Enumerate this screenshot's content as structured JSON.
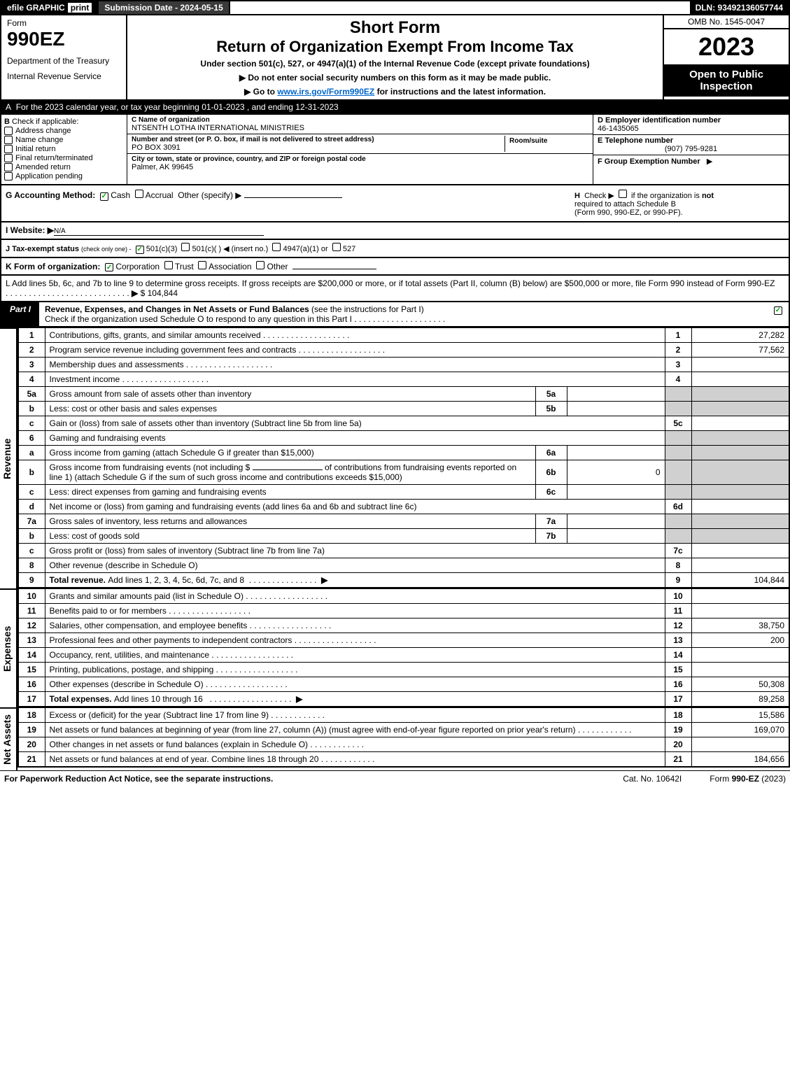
{
  "colors": {
    "black": "#000000",
    "white": "#ffffff",
    "darkgray": "#3a3a3a",
    "shade": "#d0d0d0",
    "link": "#0066cc",
    "check_green": "#00aa00"
  },
  "top_bar": {
    "efile": "efile",
    "graphic": "GRAPHIC",
    "print": "print",
    "submission_label": "Submission Date - 2024-05-15",
    "dln": "DLN: 93492136057744"
  },
  "header": {
    "form_word": "Form",
    "form_number": "990EZ",
    "department": "Department of the Treasury",
    "irs": "Internal Revenue Service",
    "short_form": "Short Form",
    "title": "Return of Organization Exempt From Income Tax",
    "subtitle": "Under section 501(c), 527, or 4947(a)(1) of the Internal Revenue Code (except private foundations)",
    "no_ssn": "▶ Do not enter social security numbers on this form as it may be made public.",
    "goto": "▶ Go to ",
    "goto_link": "www.irs.gov/Form990EZ",
    "goto_suffix": " for instructions and the latest information.",
    "omb": "OMB No. 1545-0047",
    "year": "2023",
    "open_to": "Open to Public Inspection"
  },
  "section_a": {
    "prefix": "A",
    "text": "For the 2023 calendar year, or tax year beginning 01-01-2023 , and ending 12-31-2023"
  },
  "section_b": {
    "label": "B",
    "heading": "Check if applicable:",
    "items": [
      {
        "label": "Address change",
        "checked": false
      },
      {
        "label": "Name change",
        "checked": false
      },
      {
        "label": "Initial return",
        "checked": false
      },
      {
        "label": "Final return/terminated",
        "checked": false
      },
      {
        "label": "Amended return",
        "checked": false
      },
      {
        "label": "Application pending",
        "checked": false
      }
    ]
  },
  "section_c": {
    "name_label": "C Name of organization",
    "name": "NTSENTH LOTHA INTERNATIONAL MINISTRIES",
    "street_label": "Number and street (or P. O. box, if mail is not delivered to street address)",
    "room_label": "Room/suite",
    "street": "PO BOX 3091",
    "city_label": "City or town, state or province, country, and ZIP or foreign postal code",
    "city": "Palmer, AK  99645"
  },
  "section_d": {
    "ein_label": "D Employer identification number",
    "ein": "46-1435065",
    "phone_label": "E Telephone number",
    "phone": "(907) 795-9281",
    "group_label": "F Group Exemption Number",
    "group_arrow": "▶"
  },
  "row_g": {
    "label": "G Accounting Method:",
    "cash": "Cash",
    "accrual": "Accrual",
    "other": "Other (specify) ▶",
    "cash_checked": true,
    "h_label": "H",
    "h_text1": "Check ▶",
    "h_text2": "if the organization is",
    "h_not": "not",
    "h_text3": "required to attach Schedule B",
    "h_text4": "(Form 990, 990-EZ, or 990-PF)."
  },
  "row_i": {
    "label": "I Website: ▶",
    "value": "N/A"
  },
  "row_j": {
    "label": "J Tax-exempt status",
    "small": "(check only one) -",
    "opt1": "501(c)(3)",
    "opt2": "501(c)(  ) ◀ (insert no.)",
    "opt3": "4947(a)(1) or",
    "opt4": "527",
    "opt1_checked": true
  },
  "row_k": {
    "label": "K Form of organization:",
    "opts": [
      {
        "label": "Corporation",
        "checked": true
      },
      {
        "label": "Trust",
        "checked": false
      },
      {
        "label": "Association",
        "checked": false
      },
      {
        "label": "Other",
        "checked": false
      }
    ]
  },
  "row_l": {
    "text": "L Add lines 5b, 6c, and 7b to line 9 to determine gross receipts. If gross receipts are $200,000 or more, or if total assets (Part II, column (B) below) are $500,000 or more, file Form 990 instead of Form 990-EZ",
    "arrow": "▶",
    "amount": "$ 104,844"
  },
  "part1": {
    "label": "Part I",
    "title": "Revenue, Expenses, and Changes in Net Assets or Fund Balances",
    "subtitle": "(see the instructions for Part I)",
    "check_text": "Check if the organization used Schedule O to respond to any question in this Part I",
    "check_checked": true
  },
  "revenue": {
    "side_label": "Revenue",
    "rows": [
      {
        "num": "1",
        "desc": "Contributions, gifts, grants, and similar amounts received",
        "ref": "1",
        "val": "27,282"
      },
      {
        "num": "2",
        "desc": "Program service revenue including government fees and contracts",
        "ref": "2",
        "val": "77,562"
      },
      {
        "num": "3",
        "desc": "Membership dues and assessments",
        "ref": "3",
        "val": ""
      },
      {
        "num": "4",
        "desc": "Investment income",
        "ref": "4",
        "val": ""
      }
    ],
    "row5a": {
      "num": "5a",
      "desc": "Gross amount from sale of assets other than inventory",
      "sub_ref": "5a",
      "sub_val": ""
    },
    "row5b": {
      "num": "b",
      "desc": "Less: cost or other basis and sales expenses",
      "sub_ref": "5b",
      "sub_val": ""
    },
    "row5c": {
      "num": "c",
      "desc": "Gain or (loss) from sale of assets other than inventory (Subtract line 5b from line 5a)",
      "ref": "5c",
      "val": ""
    },
    "row6": {
      "num": "6",
      "desc": "Gaming and fundraising events"
    },
    "row6a": {
      "num": "a",
      "desc": "Gross income from gaming (attach Schedule G if greater than $15,000)",
      "sub_ref": "6a",
      "sub_val": ""
    },
    "row6b": {
      "num": "b",
      "desc_pre": "Gross income from fundraising events (not including $",
      "desc_mid": "of contributions from fundraising events reported on line 1) (attach Schedule G if the sum of such gross income and contributions exceeds $15,000)",
      "sub_ref": "6b",
      "sub_2traw": "",
      "sub_val": "0"
    },
    "row6c": {
      "num": "c",
      "desc": "Less: direct expenses from gaming and fundraising events",
      "sub_ref": "6c",
      "sub_val": ""
    },
    "row6d": {
      "num": "d",
      "desc": "Net income or (loss) from gaming and fundraising events (add lines 6a and 6b and subtract line 6c)",
      "ref": "6d",
      "val": ""
    },
    "row7a": {
      "num": "7a",
      "desc": "Gross sales of inventory, less returns and allowances",
      "sub_ref": "7a",
      "sub_val": ""
    },
    "row7b": {
      "num": "b",
      "desc": "Less: cost of goods sold",
      "sub_ref": "7b",
      "sub_val": ""
    },
    "row7c": {
      "num": "c",
      "desc": "Gross profit or (loss) from sales of inventory (Subtract line 7b from line 7a)",
      "ref": "7c",
      "val": ""
    },
    "row8": {
      "num": "8",
      "desc": "Other revenue (describe in Schedule O)",
      "ref": "8",
      "val": ""
    },
    "row9": {
      "num": "9",
      "desc": "Total revenue. ",
      "desc2": "Add lines 1, 2, 3, 4, 5c, 6d, 7c, and 8",
      "arrow": "▶",
      "ref": "9",
      "val": "104,844"
    }
  },
  "expenses": {
    "side_label": "Expenses",
    "rows": [
      {
        "num": "10",
        "desc": "Grants and similar amounts paid (list in Schedule O)",
        "ref": "10",
        "val": ""
      },
      {
        "num": "11",
        "desc": "Benefits paid to or for members",
        "ref": "11",
        "val": ""
      },
      {
        "num": "12",
        "desc": "Salaries, other compensation, and employee benefits",
        "ref": "12",
        "val": "38,750"
      },
      {
        "num": "13",
        "desc": "Professional fees and other payments to independent contractors",
        "ref": "13",
        "val": "200"
      },
      {
        "num": "14",
        "desc": "Occupancy, rent, utilities, and maintenance",
        "ref": "14",
        "val": ""
      },
      {
        "num": "15",
        "desc": "Printing, publications, postage, and shipping",
        "ref": "15",
        "val": ""
      },
      {
        "num": "16",
        "desc": "Other expenses (describe in Schedule O)",
        "ref": "16",
        "val": "50,308"
      }
    ],
    "row17": {
      "num": "17",
      "desc": "Total expenses. ",
      "desc2": "Add lines 10 through 16",
      "arrow": "▶",
      "ref": "17",
      "val": "89,258"
    }
  },
  "netassets": {
    "side_label": "Net Assets",
    "rows": [
      {
        "num": "18",
        "desc": "Excess or (deficit) for the year (Subtract line 17 from line 9)",
        "ref": "18",
        "val": "15,586"
      },
      {
        "num": "19",
        "desc": "Net assets or fund balances at beginning of year (from line 27, column (A)) (must agree with end-of-year figure reported on prior year's return)",
        "ref": "19",
        "val": "169,070"
      },
      {
        "num": "20",
        "desc": "Other changes in net assets or fund balances (explain in Schedule O)",
        "ref": "20",
        "val": ""
      },
      {
        "num": "21",
        "desc": "Net assets or fund balances at end of year. Combine lines 18 through 20",
        "ref": "21",
        "val": "184,656"
      }
    ]
  },
  "footer": {
    "left": "For Paperwork Reduction Act Notice, see the separate instructions.",
    "mid": "Cat. No. 10642I",
    "right_pre": "Form ",
    "right_bold": "990-EZ",
    "right_suf": " (2023)"
  }
}
